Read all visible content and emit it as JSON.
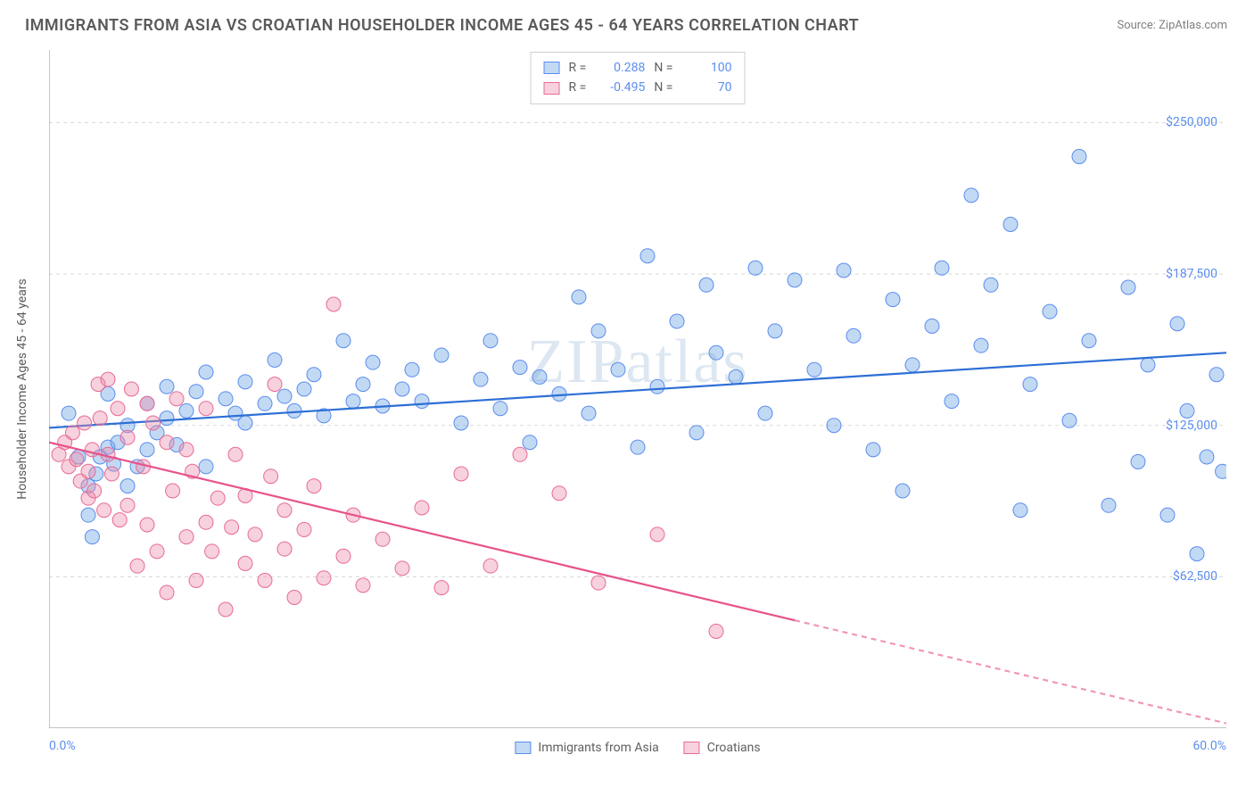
{
  "title": "IMMIGRANTS FROM ASIA VS CROATIAN HOUSEHOLDER INCOME AGES 45 - 64 YEARS CORRELATION CHART",
  "source": "Source: ZipAtlas.com",
  "watermark": "ZIPatlas",
  "y_axis_label": "Householder Income Ages 45 - 64 years",
  "chart": {
    "type": "scatter",
    "background_color": "#ffffff",
    "grid_color": "#d8d8d8",
    "axis_color": "#a0a0a0",
    "xlim": [
      0,
      60
    ],
    "ylim": [
      0,
      280000
    ],
    "x_ticks": [
      0,
      10,
      20,
      30,
      40,
      50,
      60
    ],
    "x_tick_labels_shown": {
      "0": "0.0%",
      "60": "60.0%"
    },
    "y_gridlines": [
      62500,
      125000,
      187500,
      250000
    ],
    "y_tick_labels": [
      "$62,500",
      "$125,000",
      "$187,500",
      "$250,000"
    ],
    "series": [
      {
        "name": "Immigrants from Asia",
        "R": "0.288",
        "N": "100",
        "marker_fill": "rgba(120, 170, 230, 0.45)",
        "marker_stroke": "#5b8def",
        "marker_radius": 8,
        "line_color": "#2d6fd6",
        "line_width": 2.2,
        "trend": {
          "x1": 0,
          "y1": 124000,
          "x2": 60,
          "y2": 155000,
          "dashed_from_x": null
        },
        "points": [
          [
            1,
            130000
          ],
          [
            1.5,
            112000
          ],
          [
            2,
            100000
          ],
          [
            2,
            88000
          ],
          [
            2.2,
            79000
          ],
          [
            2.4,
            105000
          ],
          [
            2.6,
            112000
          ],
          [
            3,
            116000
          ],
          [
            3,
            138000
          ],
          [
            3.3,
            109000
          ],
          [
            3.5,
            118000
          ],
          [
            4,
            100000
          ],
          [
            4,
            125000
          ],
          [
            4.5,
            108000
          ],
          [
            5,
            115000
          ],
          [
            5,
            134000
          ],
          [
            5.5,
            122000
          ],
          [
            6,
            141000
          ],
          [
            6,
            128000
          ],
          [
            6.5,
            117000
          ],
          [
            7,
            131000
          ],
          [
            7.5,
            139000
          ],
          [
            8,
            147000
          ],
          [
            8,
            108000
          ],
          [
            9,
            136000
          ],
          [
            9.5,
            130000
          ],
          [
            10,
            126000
          ],
          [
            10,
            143000
          ],
          [
            11,
            134000
          ],
          [
            11.5,
            152000
          ],
          [
            12,
            137000
          ],
          [
            12.5,
            131000
          ],
          [
            13,
            140000
          ],
          [
            13.5,
            146000
          ],
          [
            14,
            129000
          ],
          [
            15,
            160000
          ],
          [
            15.5,
            135000
          ],
          [
            16,
            142000
          ],
          [
            16.5,
            151000
          ],
          [
            17,
            133000
          ],
          [
            18,
            140000
          ],
          [
            18.5,
            148000
          ],
          [
            19,
            135000
          ],
          [
            20,
            154000
          ],
          [
            21,
            126000
          ],
          [
            22,
            144000
          ],
          [
            22.5,
            160000
          ],
          [
            23,
            132000
          ],
          [
            24,
            149000
          ],
          [
            24.5,
            118000
          ],
          [
            25,
            145000
          ],
          [
            26,
            138000
          ],
          [
            27,
            178000
          ],
          [
            27.5,
            130000
          ],
          [
            28,
            164000
          ],
          [
            29,
            148000
          ],
          [
            30,
            116000
          ],
          [
            30.5,
            195000
          ],
          [
            31,
            141000
          ],
          [
            32,
            168000
          ],
          [
            33,
            122000
          ],
          [
            33.5,
            183000
          ],
          [
            34,
            155000
          ],
          [
            35,
            145000
          ],
          [
            36,
            190000
          ],
          [
            36.5,
            130000
          ],
          [
            37,
            164000
          ],
          [
            38,
            185000
          ],
          [
            39,
            148000
          ],
          [
            40,
            125000
          ],
          [
            40.5,
            189000
          ],
          [
            41,
            162000
          ],
          [
            42,
            115000
          ],
          [
            43,
            177000
          ],
          [
            43.5,
            98000
          ],
          [
            44,
            150000
          ],
          [
            45,
            166000
          ],
          [
            45.5,
            190000
          ],
          [
            46,
            135000
          ],
          [
            47,
            220000
          ],
          [
            47.5,
            158000
          ],
          [
            48,
            183000
          ],
          [
            49,
            208000
          ],
          [
            49.5,
            90000
          ],
          [
            50,
            142000
          ],
          [
            51,
            172000
          ],
          [
            52,
            127000
          ],
          [
            52.5,
            236000
          ],
          [
            53,
            160000
          ],
          [
            54,
            92000
          ],
          [
            55,
            182000
          ],
          [
            55.5,
            110000
          ],
          [
            56,
            150000
          ],
          [
            57,
            88000
          ],
          [
            57.5,
            167000
          ],
          [
            58,
            131000
          ],
          [
            58.5,
            72000
          ],
          [
            59,
            112000
          ],
          [
            59.5,
            146000
          ],
          [
            59.8,
            106000
          ]
        ]
      },
      {
        "name": "Croatians",
        "R": "-0.495",
        "N": "70",
        "marker_fill": "rgba(235, 140, 170, 0.40)",
        "marker_stroke": "#e86b95",
        "marker_radius": 8,
        "line_color": "#e8528a",
        "line_width": 2.2,
        "trend": {
          "x1": 0,
          "y1": 118000,
          "x2": 60,
          "y2": 2000,
          "dashed_from_x": 38
        },
        "points": [
          [
            0.5,
            113000
          ],
          [
            0.8,
            118000
          ],
          [
            1,
            108000
          ],
          [
            1.2,
            122000
          ],
          [
            1.4,
            111000
          ],
          [
            1.6,
            102000
          ],
          [
            1.8,
            126000
          ],
          [
            2,
            106000
          ],
          [
            2,
            95000
          ],
          [
            2.2,
            115000
          ],
          [
            2.3,
            98000
          ],
          [
            2.5,
            142000
          ],
          [
            2.6,
            128000
          ],
          [
            2.8,
            90000
          ],
          [
            3,
            113000
          ],
          [
            3,
            144000
          ],
          [
            3.2,
            105000
          ],
          [
            3.5,
            132000
          ],
          [
            3.6,
            86000
          ],
          [
            4,
            120000
          ],
          [
            4,
            92000
          ],
          [
            4.2,
            140000
          ],
          [
            4.5,
            67000
          ],
          [
            4.8,
            108000
          ],
          [
            5,
            134000
          ],
          [
            5,
            84000
          ],
          [
            5.3,
            126000
          ],
          [
            5.5,
            73000
          ],
          [
            6,
            118000
          ],
          [
            6,
            56000
          ],
          [
            6.3,
            98000
          ],
          [
            6.5,
            136000
          ],
          [
            7,
            79000
          ],
          [
            7,
            115000
          ],
          [
            7.3,
            106000
          ],
          [
            7.5,
            61000
          ],
          [
            8,
            85000
          ],
          [
            8,
            132000
          ],
          [
            8.3,
            73000
          ],
          [
            8.6,
            95000
          ],
          [
            9,
            49000
          ],
          [
            9.3,
            83000
          ],
          [
            9.5,
            113000
          ],
          [
            10,
            68000
          ],
          [
            10,
            96000
          ],
          [
            10.5,
            80000
          ],
          [
            11,
            61000
          ],
          [
            11.3,
            104000
          ],
          [
            11.5,
            142000
          ],
          [
            12,
            74000
          ],
          [
            12,
            90000
          ],
          [
            12.5,
            54000
          ],
          [
            13,
            82000
          ],
          [
            13.5,
            100000
          ],
          [
            14,
            62000
          ],
          [
            14.5,
            175000
          ],
          [
            15,
            71000
          ],
          [
            15.5,
            88000
          ],
          [
            16,
            59000
          ],
          [
            17,
            78000
          ],
          [
            18,
            66000
          ],
          [
            19,
            91000
          ],
          [
            20,
            58000
          ],
          [
            21,
            105000
          ],
          [
            22.5,
            67000
          ],
          [
            24,
            113000
          ],
          [
            26,
            97000
          ],
          [
            28,
            60000
          ],
          [
            31,
            80000
          ],
          [
            34,
            40000
          ]
        ]
      }
    ]
  },
  "legend_bottom": [
    {
      "label": "Immigrants from Asia",
      "fill": "rgba(120,170,230,0.45)",
      "stroke": "#5b8def"
    },
    {
      "label": "Croatians",
      "fill": "rgba(235,140,170,0.40)",
      "stroke": "#e86b95"
    }
  ],
  "tick_label_color": "#5b8def"
}
